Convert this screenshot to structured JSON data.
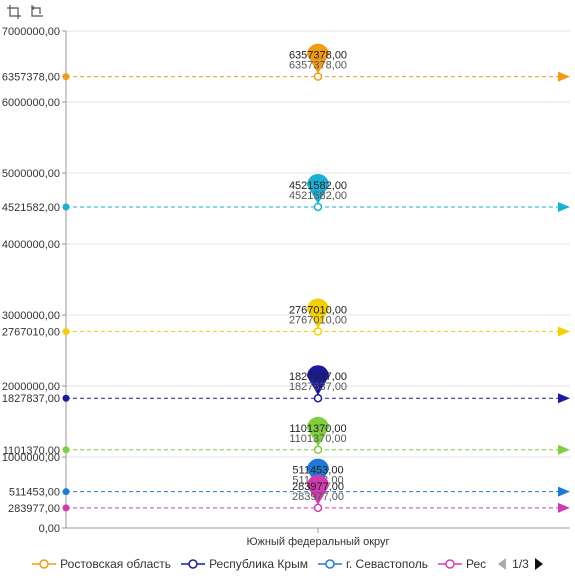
{
  "toolbar": {
    "items": [
      {
        "name": "zoom-select-icon"
      },
      {
        "name": "zoom-reset-icon"
      }
    ]
  },
  "chart_data": {
    "type": "scatter",
    "title": "",
    "xlabel": "",
    "ylabel": "",
    "categories": [
      "Южный федеральный округ"
    ],
    "ylim": [
      0,
      7000000
    ],
    "y_ticks": [
      "0,00",
      "1000000,00",
      "2000000,00",
      "3000000,00",
      "4000000,00",
      "5000000,00",
      "6000000,00",
      "7000000,00"
    ],
    "grid": true,
    "series": [
      {
        "name": "Ростовская область",
        "value": 6357378,
        "label": "6357378,00",
        "color": "#f39c12"
      },
      {
        "value": 4521582,
        "label": "4521582,00",
        "color": "#1ab0d4"
      },
      {
        "value": 2767010,
        "label": "2767010,00",
        "color": "#f5d000"
      },
      {
        "name": "Республика Крым",
        "value": 1827837,
        "label": "1827837,00",
        "color": "#1a1aa0"
      },
      {
        "value": 1101370,
        "label": "1101370,00",
        "color": "#7fcf3f"
      },
      {
        "name": "г. Севастополь",
        "value": 511453,
        "label": "511453,00",
        "color": "#1e7ad8"
      },
      {
        "name": "Рес",
        "value": 283977,
        "label": "283977,00",
        "color": "#d23ab0"
      }
    ],
    "legend": {
      "placement": "bottom",
      "page_text": "1/3"
    }
  }
}
